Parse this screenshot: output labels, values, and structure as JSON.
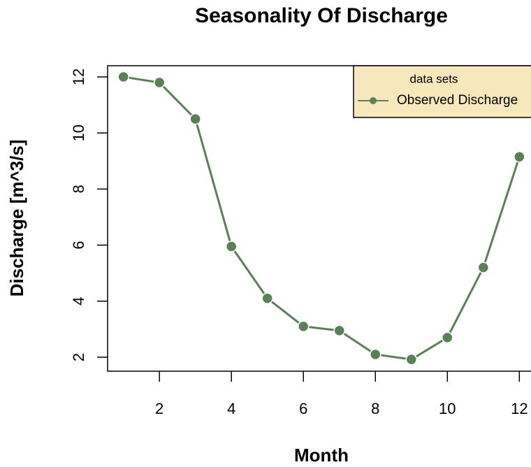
{
  "chart_data": {
    "type": "line",
    "title": "Seasonality Of Discharge",
    "x_label": "Month",
    "y_label": "Discharge [m^3/s]",
    "legend_title": "data sets",
    "legend": "top-right",
    "x": [
      1,
      2,
      3,
      4,
      5,
      6,
      7,
      8,
      9,
      10,
      11,
      12
    ],
    "series": [
      {
        "name": "Observed Discharge",
        "color": "#5b7f58",
        "values": [
          12.0,
          11.8,
          10.5,
          5.95,
          4.1,
          3.1,
          2.95,
          2.1,
          1.92,
          2.7,
          5.2,
          9.15
        ]
      }
    ],
    "xlim": [
      0.56,
      12.44
    ],
    "ylim": [
      1.5,
      12.4
    ],
    "xticks": [
      2,
      4,
      6,
      8,
      10,
      12
    ],
    "yticks": [
      2,
      4,
      6,
      8,
      10,
      12
    ]
  }
}
